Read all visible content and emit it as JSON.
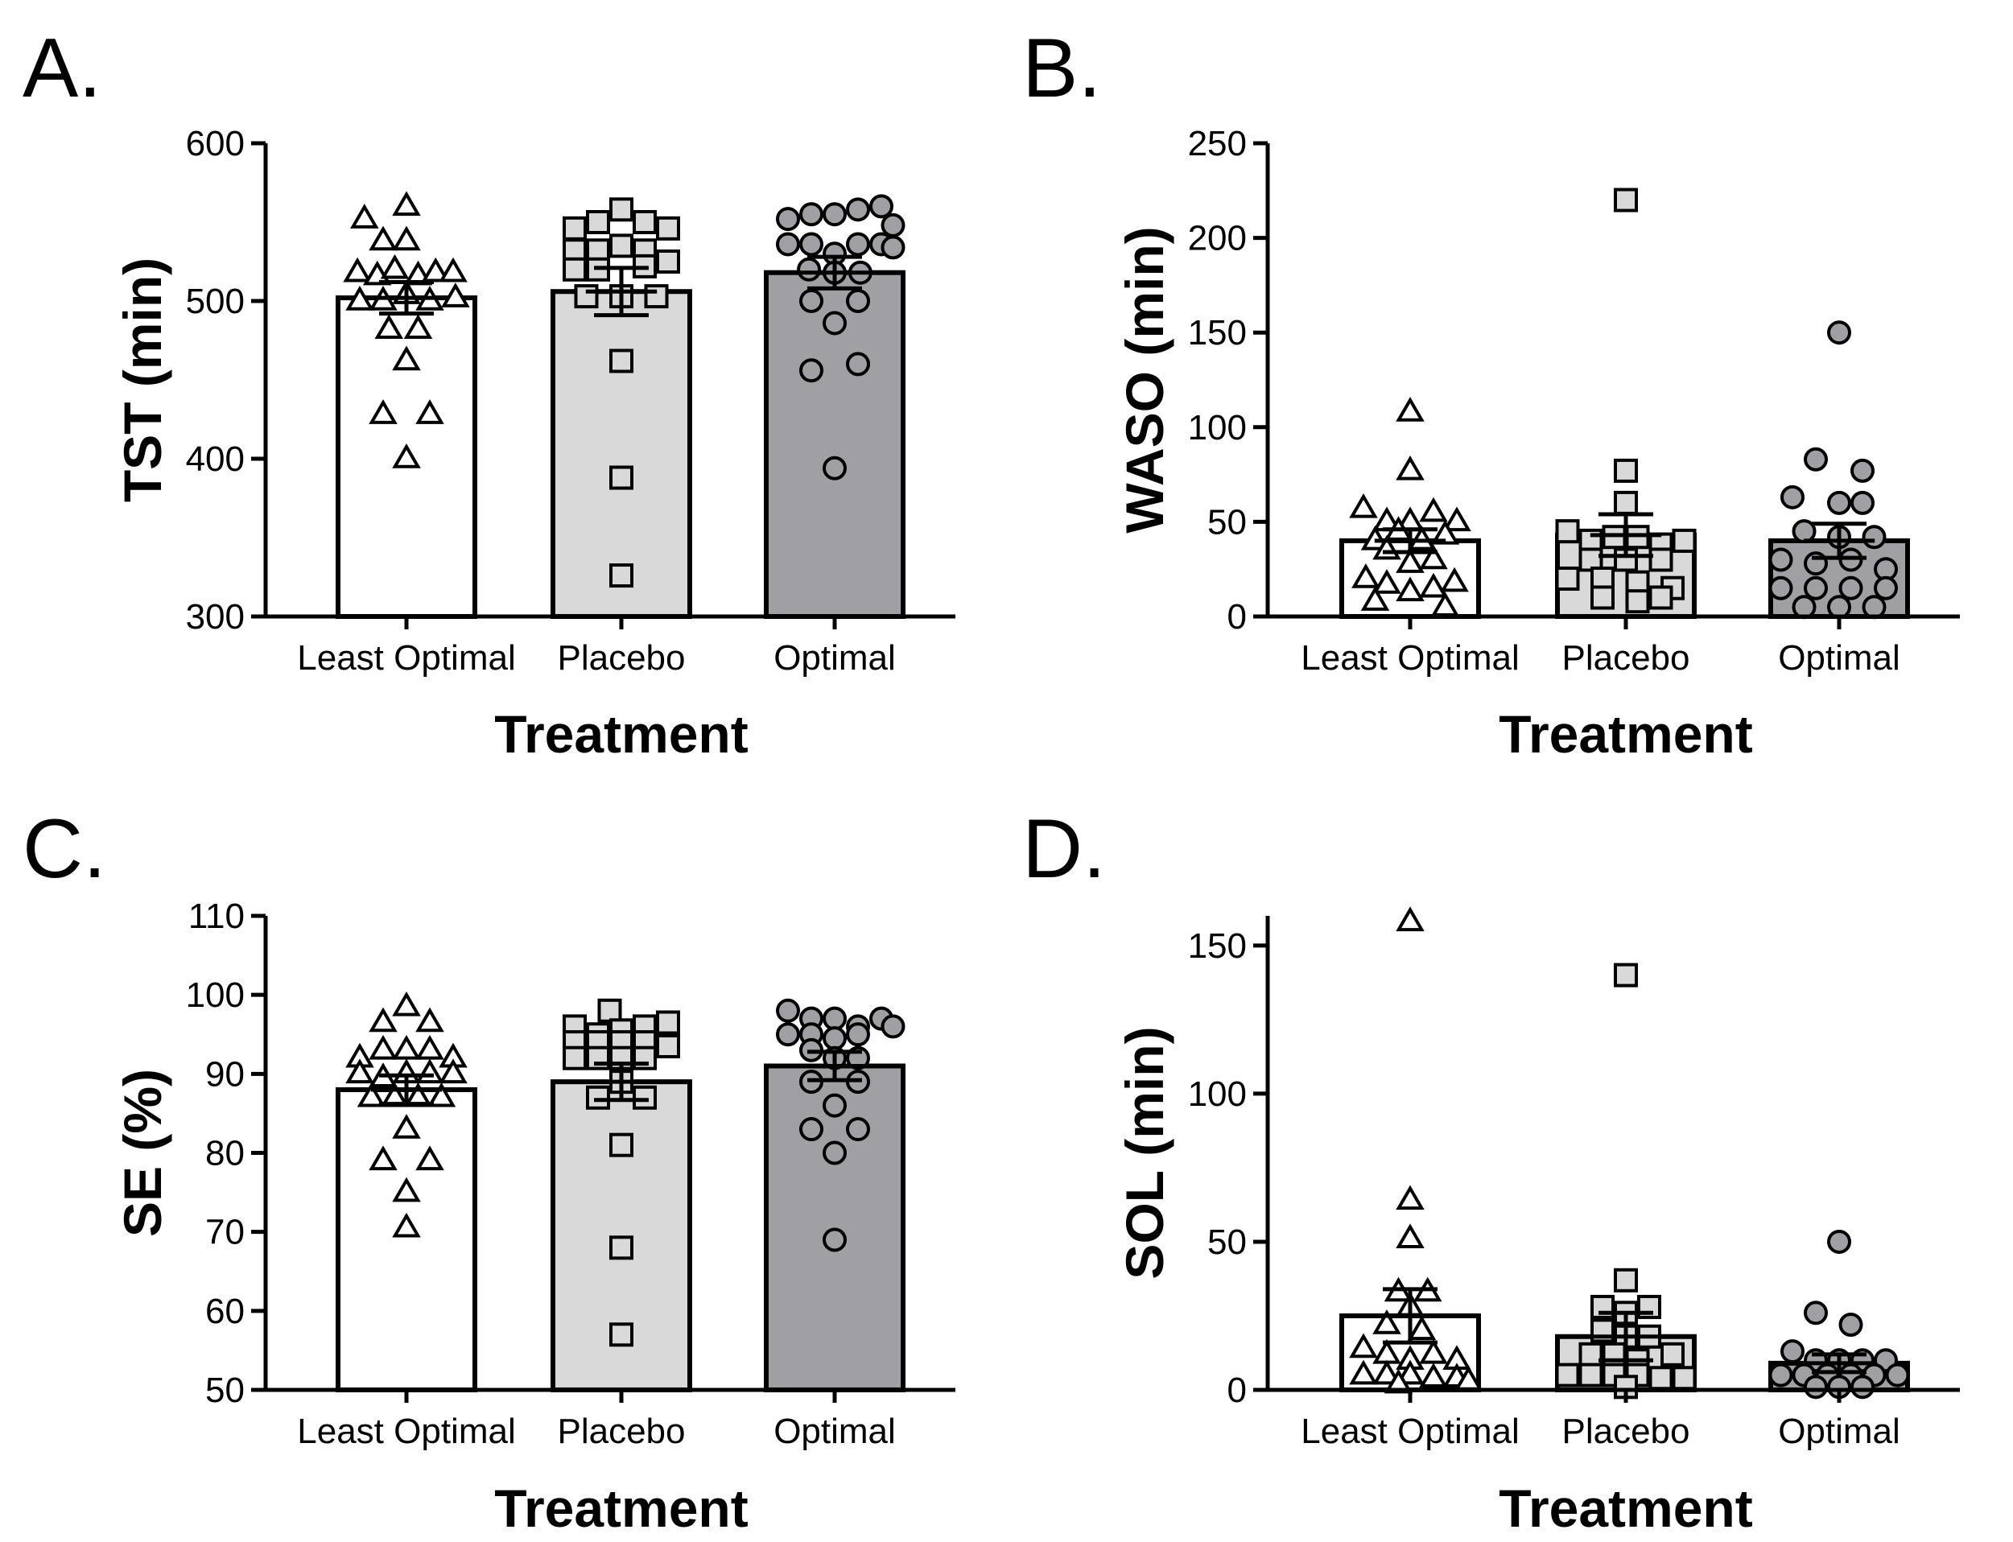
{
  "chart_data": [
    {
      "type": "bar",
      "panel": "A.",
      "xlabel": "Treatment",
      "ylabel": "TST (min)",
      "ylim": [
        300,
        600
      ],
      "yticks": [
        300,
        400,
        500,
        600
      ],
      "categories": [
        "Least Optimal",
        "Placebo",
        "Optimal"
      ],
      "means": [
        502,
        506,
        518
      ],
      "sem": [
        10,
        15,
        10
      ],
      "fill_colors": [
        "#ffffff",
        "#d9d9d9",
        "#a0a0a4"
      ],
      "marker_shapes": [
        "triangle",
        "square",
        "circle"
      ],
      "points": [
        [
          [
            -36,
            552
          ],
          [
            0,
            560
          ],
          [
            -20,
            538
          ],
          [
            0,
            538
          ],
          [
            -42,
            518
          ],
          [
            -25,
            516
          ],
          [
            -10,
            520
          ],
          [
            10,
            516
          ],
          [
            25,
            518
          ],
          [
            40,
            518
          ],
          [
            -40,
            500
          ],
          [
            -20,
            500
          ],
          [
            0,
            504
          ],
          [
            20,
            500
          ],
          [
            42,
            502
          ],
          [
            -15,
            482
          ],
          [
            10,
            482
          ],
          [
            0,
            462
          ],
          [
            -20,
            428
          ],
          [
            20,
            428
          ],
          [
            0,
            400
          ]
        ],
        [
          [
            -40,
            546
          ],
          [
            -20,
            550
          ],
          [
            0,
            558
          ],
          [
            20,
            550
          ],
          [
            40,
            546
          ],
          [
            -40,
            532
          ],
          [
            -20,
            532
          ],
          [
            0,
            535
          ],
          [
            20,
            532
          ],
          [
            -40,
            520
          ],
          [
            -20,
            520
          ],
          [
            20,
            522
          ],
          [
            40,
            525
          ],
          [
            -30,
            503
          ],
          [
            0,
            503
          ],
          [
            30,
            503
          ],
          [
            0,
            462
          ],
          [
            0,
            388
          ],
          [
            0,
            326
          ]
        ],
        [
          [
            -40,
            552
          ],
          [
            -20,
            555
          ],
          [
            0,
            555
          ],
          [
            20,
            558
          ],
          [
            40,
            560
          ],
          [
            50,
            548
          ],
          [
            -40,
            536
          ],
          [
            -20,
            536
          ],
          [
            0,
            530
          ],
          [
            20,
            536
          ],
          [
            40,
            536
          ],
          [
            50,
            534
          ],
          [
            -22,
            520
          ],
          [
            0,
            518
          ],
          [
            22,
            518
          ],
          [
            -20,
            500
          ],
          [
            20,
            500
          ],
          [
            0,
            486
          ],
          [
            -20,
            456
          ],
          [
            20,
            460
          ],
          [
            0,
            394
          ]
        ]
      ]
    },
    {
      "type": "bar",
      "panel": "B.",
      "xlabel": "Treatment",
      "ylabel": "WASO (min)",
      "ylim": [
        0,
        250
      ],
      "yticks": [
        0,
        50,
        100,
        150,
        200,
        250
      ],
      "categories": [
        "Least Optimal",
        "Placebo",
        "Optimal"
      ],
      "means": [
        40,
        43,
        40
      ],
      "sem": [
        6,
        11,
        9
      ],
      "fill_colors": [
        "#ffffff",
        "#d9d9d9",
        "#a0a0a4"
      ],
      "marker_shapes": [
        "triangle",
        "square",
        "circle"
      ],
      "points": [
        [
          [
            0,
            108
          ],
          [
            0,
            77
          ],
          [
            -40,
            57
          ],
          [
            -20,
            50
          ],
          [
            0,
            50
          ],
          [
            20,
            55
          ],
          [
            40,
            50
          ],
          [
            -30,
            40
          ],
          [
            -10,
            45
          ],
          [
            10,
            40
          ],
          [
            30,
            43
          ],
          [
            -20,
            35
          ],
          [
            0,
            28
          ],
          [
            20,
            30
          ],
          [
            -38,
            20
          ],
          [
            -20,
            17
          ],
          [
            0,
            13
          ],
          [
            20,
            15
          ],
          [
            38,
            18
          ],
          [
            -30,
            8
          ],
          [
            30,
            5
          ]
        ],
        [
          [
            0,
            220
          ],
          [
            0,
            77
          ],
          [
            0,
            60
          ],
          [
            -50,
            45
          ],
          [
            -30,
            40
          ],
          [
            -10,
            42
          ],
          [
            10,
            42
          ],
          [
            30,
            38
          ],
          [
            50,
            40
          ],
          [
            -30,
            30
          ],
          [
            0,
            30
          ],
          [
            30,
            30
          ],
          [
            -50,
            20
          ],
          [
            -20,
            20
          ],
          [
            10,
            18
          ],
          [
            40,
            15
          ],
          [
            -20,
            10
          ],
          [
            10,
            8
          ],
          [
            30,
            10
          ]
        ],
        [
          [
            0,
            150
          ],
          [
            -20,
            83
          ],
          [
            20,
            77
          ],
          [
            -40,
            63
          ],
          [
            0,
            60
          ],
          [
            20,
            60
          ],
          [
            -30,
            45
          ],
          [
            0,
            42
          ],
          [
            30,
            42
          ],
          [
            -50,
            30
          ],
          [
            -20,
            28
          ],
          [
            10,
            30
          ],
          [
            40,
            25
          ],
          [
            -50,
            15
          ],
          [
            -20,
            15
          ],
          [
            10,
            15
          ],
          [
            40,
            15
          ],
          [
            -30,
            5
          ],
          [
            0,
            5
          ],
          [
            30,
            5
          ]
        ]
      ]
    },
    {
      "type": "bar",
      "panel": "C.",
      "xlabel": "Treatment",
      "ylabel": "SE (%)",
      "ylim": [
        50,
        110
      ],
      "yticks": [
        50,
        60,
        70,
        80,
        90,
        100,
        110
      ],
      "categories": [
        "Least Optimal",
        "Placebo",
        "Optimal"
      ],
      "means": [
        88,
        89,
        91
      ],
      "sem": [
        1.8,
        2.3,
        1.8
      ],
      "fill_colors": [
        "#ffffff",
        "#d9d9d9",
        "#a0a0a4"
      ],
      "marker_shapes": [
        "triangle",
        "square",
        "circle"
      ],
      "points": [
        [
          [
            0,
            98.5
          ],
          [
            -20,
            96.5
          ],
          [
            20,
            96.5
          ],
          [
            -40,
            92
          ],
          [
            -20,
            93
          ],
          [
            0,
            93
          ],
          [
            20,
            93
          ],
          [
            40,
            92
          ],
          [
            -40,
            90
          ],
          [
            -20,
            89.5
          ],
          [
            0,
            90
          ],
          [
            20,
            90
          ],
          [
            40,
            90
          ],
          [
            -30,
            87
          ],
          [
            -10,
            87
          ],
          [
            10,
            87
          ],
          [
            30,
            87
          ],
          [
            0,
            83
          ],
          [
            -20,
            79
          ],
          [
            20,
            79
          ],
          [
            0,
            75
          ],
          [
            0,
            70.5
          ]
        ],
        [
          [
            -10,
            98
          ],
          [
            -40,
            96
          ],
          [
            -20,
            95
          ],
          [
            0,
            95.5
          ],
          [
            20,
            96
          ],
          [
            40,
            96.5
          ],
          [
            -40,
            94
          ],
          [
            -20,
            94
          ],
          [
            0,
            94
          ],
          [
            20,
            94
          ],
          [
            40,
            93.5
          ],
          [
            -40,
            92
          ],
          [
            -20,
            92
          ],
          [
            0,
            92
          ],
          [
            20,
            92
          ],
          [
            0,
            89
          ],
          [
            -20,
            87
          ],
          [
            20,
            87
          ],
          [
            0,
            81
          ],
          [
            0,
            68
          ],
          [
            0,
            57
          ]
        ],
        [
          [
            -40,
            98
          ],
          [
            -20,
            97
          ],
          [
            0,
            97
          ],
          [
            20,
            96
          ],
          [
            40,
            97
          ],
          [
            50,
            96
          ],
          [
            -40,
            95
          ],
          [
            -20,
            95
          ],
          [
            0,
            94.5
          ],
          [
            20,
            95
          ],
          [
            -20,
            93
          ],
          [
            0,
            92
          ],
          [
            20,
            92
          ],
          [
            -20,
            89
          ],
          [
            20,
            89
          ],
          [
            0,
            86
          ],
          [
            -20,
            83
          ],
          [
            20,
            83
          ],
          [
            0,
            80
          ],
          [
            0,
            69
          ]
        ]
      ]
    },
    {
      "type": "bar",
      "panel": "D.",
      "xlabel": "Treatment",
      "ylabel": "SOL (min)",
      "ylim": [
        0,
        160
      ],
      "yticks": [
        0,
        50,
        100,
        150
      ],
      "categories": [
        "Least Optimal",
        "Placebo",
        "Optimal"
      ],
      "means": [
        25,
        18,
        9
      ],
      "sem": [
        9,
        8,
        3
      ],
      "fill_colors": [
        "#ffffff",
        "#d9d9d9",
        "#a0a0a4"
      ],
      "marker_shapes": [
        "triangle",
        "square",
        "circle"
      ],
      "points": [
        [
          [
            0,
            158
          ],
          [
            0,
            64
          ],
          [
            0,
            51
          ],
          [
            -10,
            33
          ],
          [
            0,
            28
          ],
          [
            15,
            33
          ],
          [
            -20,
            22
          ],
          [
            10,
            20
          ],
          [
            -40,
            14
          ],
          [
            -20,
            12
          ],
          [
            0,
            10
          ],
          [
            20,
            12
          ],
          [
            40,
            10
          ],
          [
            -40,
            5
          ],
          [
            -20,
            5
          ],
          [
            0,
            5
          ],
          [
            20,
            4
          ],
          [
            40,
            4
          ],
          [
            50,
            3
          ],
          [
            -10,
            2
          ]
        ],
        [
          [
            0,
            140
          ],
          [
            0,
            37
          ],
          [
            -20,
            28
          ],
          [
            0,
            26
          ],
          [
            20,
            28
          ],
          [
            -20,
            20
          ],
          [
            0,
            18
          ],
          [
            20,
            18
          ],
          [
            -30,
            12
          ],
          [
            -10,
            12
          ],
          [
            10,
            10
          ],
          [
            40,
            12
          ],
          [
            -50,
            5
          ],
          [
            -30,
            5
          ],
          [
            -10,
            5
          ],
          [
            10,
            5
          ],
          [
            30,
            4
          ],
          [
            50,
            4
          ],
          [
            0,
            1
          ]
        ],
        [
          [
            0,
            50
          ],
          [
            -20,
            26
          ],
          [
            10,
            22
          ],
          [
            -40,
            13
          ],
          [
            -20,
            10
          ],
          [
            0,
            10
          ],
          [
            20,
            10
          ],
          [
            40,
            10
          ],
          [
            -50,
            5
          ],
          [
            -30,
            5
          ],
          [
            -10,
            5
          ],
          [
            10,
            5
          ],
          [
            30,
            5
          ],
          [
            50,
            5
          ],
          [
            -20,
            1
          ],
          [
            0,
            1
          ],
          [
            20,
            1
          ]
        ]
      ]
    }
  ]
}
